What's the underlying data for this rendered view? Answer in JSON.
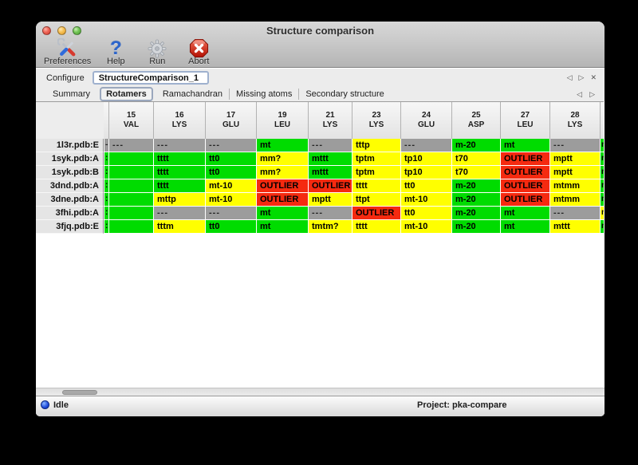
{
  "window": {
    "title": "Structure comparison"
  },
  "toolbar": {
    "buttons": [
      {
        "label": "Preferences"
      },
      {
        "label": "Help"
      },
      {
        "label": "Run"
      },
      {
        "label": "Abort"
      }
    ]
  },
  "icons": {
    "help_glyph": "?",
    "nav_prev": "◁",
    "nav_next": "▷",
    "panel_close": "✕"
  },
  "configure": {
    "label": "Configure",
    "value": "StructureComparison_1"
  },
  "tabs": {
    "items": [
      "Summary",
      "Rotamers",
      "Ramachandran",
      "Missing atoms",
      "Secondary structure"
    ],
    "selected": "Rotamers"
  },
  "table": {
    "columns": [
      {
        "num": "15",
        "res": "VAL"
      },
      {
        "num": "16",
        "res": "LYS"
      },
      {
        "num": "17",
        "res": "GLU"
      },
      {
        "num": "19",
        "res": "LEU"
      },
      {
        "num": "21",
        "res": "LYS"
      },
      {
        "num": "23",
        "res": "LYS"
      },
      {
        "num": "24",
        "res": "GLU"
      },
      {
        "num": "25",
        "res": "ASP"
      },
      {
        "num": "27",
        "res": "LEU"
      },
      {
        "num": "28",
        "res": "LYS"
      }
    ],
    "rows": [
      {
        "label": "1l3r.pdb:E",
        "edge_left": {
          "text": "-",
          "color": "gray"
        },
        "cells": [
          {
            "text": "---",
            "color": "gray"
          },
          {
            "text": "---",
            "color": "gray"
          },
          {
            "text": "---",
            "color": "gray"
          },
          {
            "text": "mt",
            "color": "green"
          },
          {
            "text": "---",
            "color": "gray"
          },
          {
            "text": "tttp",
            "color": "yellow"
          },
          {
            "text": "---",
            "color": "gray"
          },
          {
            "text": "m-20",
            "color": "green"
          },
          {
            "text": "mt",
            "color": "green"
          },
          {
            "text": "---",
            "color": "gray"
          }
        ],
        "edge_right": {
          "text": "m",
          "color": "green"
        }
      },
      {
        "label": "1syk.pdb:A",
        "edge_left": {
          "text": ":",
          "color": "green"
        },
        "cells": [
          {
            "text": "",
            "color": "green"
          },
          {
            "text": "tttt",
            "color": "green"
          },
          {
            "text": "tt0",
            "color": "green"
          },
          {
            "text": "mm?",
            "color": "yellow"
          },
          {
            "text": "mttt",
            "color": "green"
          },
          {
            "text": "tptm",
            "color": "yellow"
          },
          {
            "text": "tp10",
            "color": "yellow"
          },
          {
            "text": "t70",
            "color": "yellow"
          },
          {
            "text": "OUTLIER",
            "color": "red"
          },
          {
            "text": "mptt",
            "color": "yellow"
          }
        ],
        "edge_right": {
          "text": "m",
          "color": "green"
        }
      },
      {
        "label": "1syk.pdb:B",
        "edge_left": {
          "text": ":",
          "color": "green"
        },
        "cells": [
          {
            "text": "",
            "color": "green"
          },
          {
            "text": "tttt",
            "color": "green"
          },
          {
            "text": "tt0",
            "color": "green"
          },
          {
            "text": "mm?",
            "color": "yellow"
          },
          {
            "text": "mttt",
            "color": "green"
          },
          {
            "text": "tptm",
            "color": "yellow"
          },
          {
            "text": "tp10",
            "color": "yellow"
          },
          {
            "text": "t70",
            "color": "yellow"
          },
          {
            "text": "OUTLIER",
            "color": "red"
          },
          {
            "text": "mptt",
            "color": "yellow"
          }
        ],
        "edge_right": {
          "text": "m",
          "color": "green"
        }
      },
      {
        "label": "3dnd.pdb:A",
        "edge_left": {
          "text": ":",
          "color": "green"
        },
        "cells": [
          {
            "text": "",
            "color": "green"
          },
          {
            "text": "tttt",
            "color": "green"
          },
          {
            "text": "mt-10",
            "color": "yellow"
          },
          {
            "text": "OUTLIER",
            "color": "red"
          },
          {
            "text": "OUTLIER",
            "color": "red"
          },
          {
            "text": "tttt",
            "color": "yellow"
          },
          {
            "text": "tt0",
            "color": "yellow"
          },
          {
            "text": "m-20",
            "color": "green"
          },
          {
            "text": "OUTLIER",
            "color": "red"
          },
          {
            "text": "mtmm",
            "color": "yellow"
          }
        ],
        "edge_right": {
          "text": "m",
          "color": "green"
        }
      },
      {
        "label": "3dne.pdb:A",
        "edge_left": {
          "text": ":",
          "color": "green"
        },
        "cells": [
          {
            "text": "",
            "color": "green"
          },
          {
            "text": "mttp",
            "color": "yellow"
          },
          {
            "text": "mt-10",
            "color": "yellow"
          },
          {
            "text": "OUTLIER",
            "color": "red"
          },
          {
            "text": "mptt",
            "color": "yellow"
          },
          {
            "text": "ttpt",
            "color": "yellow"
          },
          {
            "text": "mt-10",
            "color": "yellow"
          },
          {
            "text": "m-20",
            "color": "green"
          },
          {
            "text": "OUTLIER",
            "color": "red"
          },
          {
            "text": "mtmm",
            "color": "yellow"
          }
        ],
        "edge_right": {
          "text": "m",
          "color": "green"
        }
      },
      {
        "label": "3fhi.pdb:A",
        "edge_left": {
          "text": ":",
          "color": "green"
        },
        "cells": [
          {
            "text": "",
            "color": "green"
          },
          {
            "text": "---",
            "color": "gray"
          },
          {
            "text": "---",
            "color": "gray"
          },
          {
            "text": "mt",
            "color": "green"
          },
          {
            "text": "---",
            "color": "gray"
          },
          {
            "text": "OUTLIER",
            "color": "red"
          },
          {
            "text": "tt0",
            "color": "yellow"
          },
          {
            "text": "m-20",
            "color": "green"
          },
          {
            "text": "mt",
            "color": "green"
          },
          {
            "text": "---",
            "color": "gray"
          }
        ],
        "edge_right": {
          "text": "m",
          "color": "yellow"
        }
      },
      {
        "label": "3fjq.pdb:E",
        "edge_left": {
          "text": ":",
          "color": "green"
        },
        "cells": [
          {
            "text": "",
            "color": "green"
          },
          {
            "text": "tttm",
            "color": "yellow"
          },
          {
            "text": "tt0",
            "color": "green"
          },
          {
            "text": "mt",
            "color": "green"
          },
          {
            "text": "tmtm?",
            "color": "yellow"
          },
          {
            "text": "tttt",
            "color": "yellow"
          },
          {
            "text": "mt-10",
            "color": "yellow"
          },
          {
            "text": "m-20",
            "color": "green"
          },
          {
            "text": "mt",
            "color": "green"
          },
          {
            "text": "mttt",
            "color": "yellow"
          }
        ],
        "edge_right": {
          "text": "m",
          "color": "green"
        }
      }
    ]
  },
  "statusbar": {
    "status": "Idle",
    "project": "Project: pka-compare"
  },
  "colors": {
    "green": "#00dc00",
    "yellow": "#ffff00",
    "red": "#f52a10",
    "gray": "#9c9c9c"
  }
}
